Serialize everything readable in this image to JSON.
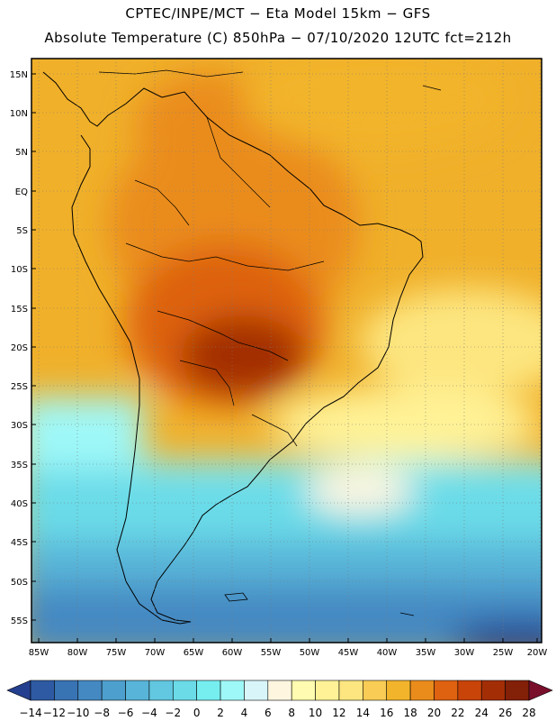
{
  "header": {
    "line1": "CPTEC/INPE/MCT −  Eta Model 15km − GFS",
    "line2": "Absolute Temperature (C) 850hPa − 07/10/2020 12UTC fct=212h"
  },
  "axes": {
    "lat_labels": [
      "15N",
      "10N",
      "5N",
      "EQ",
      "5S",
      "10S",
      "15S",
      "20S",
      "25S",
      "30S",
      "35S",
      "40S",
      "45S",
      "50S",
      "55S"
    ],
    "lon_labels": [
      "85W",
      "80W",
      "75W",
      "70W",
      "65W",
      "60W",
      "55W",
      "50W",
      "45W",
      "40W",
      "35W",
      "30W",
      "25W",
      "20W"
    ]
  },
  "colorbar": {
    "ticks": [
      "-14",
      "-12",
      "-10",
      "-8",
      "-6",
      "-4",
      "-2",
      "0",
      "2",
      "4",
      "6",
      "8",
      "10",
      "12",
      "14",
      "16",
      "18",
      "20",
      "22",
      "24",
      "26",
      "28"
    ],
    "colors": [
      "#243f8f",
      "#2e5aa3",
      "#3874b4",
      "#4489c2",
      "#4d9fcd",
      "#58b4d8",
      "#62c7e0",
      "#6bdbe8",
      "#76eef0",
      "#9ff8f8",
      "#d8f6fa",
      "#fff6e0",
      "#fffbb0",
      "#fff296",
      "#fde680",
      "#f8cc55",
      "#f2b42a",
      "#ea8c1c",
      "#de6210",
      "#c84408",
      "#a32e06",
      "#822008",
      "#7a0f2c"
    ]
  },
  "legend_note": "colour scale degrees C"
}
